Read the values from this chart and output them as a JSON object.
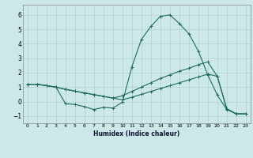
{
  "xlabel": "Humidex (Indice chaleur)",
  "background_color": "#cce8e8",
  "line_color": "#1e6b5e",
  "grid_color": "#b0d0d0",
  "xlim": [
    -0.5,
    23.5
  ],
  "ylim": [
    -1.5,
    6.7
  ],
  "xticks": [
    0,
    1,
    2,
    3,
    4,
    5,
    6,
    7,
    8,
    9,
    10,
    11,
    12,
    13,
    14,
    15,
    16,
    17,
    18,
    19,
    20,
    21,
    22,
    23
  ],
  "yticks": [
    -1,
    0,
    1,
    2,
    3,
    4,
    5,
    6
  ],
  "series": [
    {
      "x": [
        0,
        1,
        2,
        3,
        4,
        5,
        6,
        7,
        8,
        9,
        10,
        11,
        12,
        13,
        14,
        15,
        16,
        17,
        18,
        19,
        20,
        21,
        22,
        23
      ],
      "y": [
        1.2,
        1.2,
        1.1,
        1.0,
        -0.15,
        -0.2,
        -0.35,
        -0.55,
        -0.4,
        -0.45,
        -0.05,
        2.4,
        4.3,
        5.2,
        5.9,
        6.0,
        5.4,
        4.7,
        3.5,
        1.85,
        0.45,
        -0.55,
        -0.85,
        -0.85
      ]
    },
    {
      "x": [
        0,
        1,
        2,
        3,
        4,
        5,
        6,
        7,
        8,
        9,
        10,
        11,
        12,
        13,
        14,
        15,
        16,
        17,
        18,
        19,
        20,
        21,
        22,
        23
      ],
      "y": [
        1.2,
        1.2,
        1.1,
        1.0,
        0.85,
        0.72,
        0.6,
        0.48,
        0.36,
        0.24,
        0.4,
        0.7,
        1.0,
        1.3,
        1.6,
        1.85,
        2.1,
        2.3,
        2.55,
        2.75,
        1.75,
        -0.5,
        -0.85,
        -0.85
      ]
    },
    {
      "x": [
        0,
        1,
        2,
        3,
        4,
        5,
        6,
        7,
        8,
        9,
        10,
        11,
        12,
        13,
        14,
        15,
        16,
        17,
        18,
        19,
        20,
        21,
        22,
        23
      ],
      "y": [
        1.2,
        1.2,
        1.1,
        1.0,
        0.85,
        0.72,
        0.6,
        0.48,
        0.36,
        0.24,
        0.12,
        0.3,
        0.5,
        0.7,
        0.9,
        1.1,
        1.3,
        1.5,
        1.7,
        1.9,
        1.75,
        -0.5,
        -0.85,
        -0.85
      ]
    }
  ]
}
